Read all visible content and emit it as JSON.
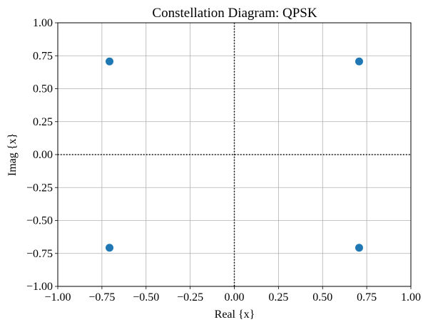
{
  "chart_data": {
    "type": "scatter",
    "title": "Constellation Diagram: QPSK",
    "xlabel": "Real {x}",
    "ylabel": "Imag {x}",
    "xlim": [
      -1.0,
      1.0
    ],
    "ylim": [
      -1.0,
      1.0
    ],
    "xticks": [
      "−1.00",
      "−0.75",
      "−0.50",
      "−0.25",
      "0.00",
      "0.25",
      "0.50",
      "0.75",
      "1.00"
    ],
    "yticks": [
      "−1.00",
      "−0.75",
      "−0.50",
      "−0.25",
      "0.00",
      "0.25",
      "0.50",
      "0.75",
      "1.00"
    ],
    "xtick_values": [
      -1.0,
      -0.75,
      -0.5,
      -0.25,
      0.0,
      0.25,
      0.5,
      0.75,
      1.0
    ],
    "ytick_values": [
      -1.0,
      -0.75,
      -0.5,
      -0.25,
      0.0,
      0.25,
      0.5,
      0.75,
      1.0
    ],
    "grid": true,
    "reference_lines": [
      "x=0 dotted",
      "y=0 dotted"
    ],
    "series": [
      {
        "color": "#1f77b4",
        "x": [
          0.707,
          -0.707,
          -0.707,
          0.707
        ],
        "y": [
          0.707,
          0.707,
          -0.707,
          -0.707
        ]
      }
    ]
  }
}
